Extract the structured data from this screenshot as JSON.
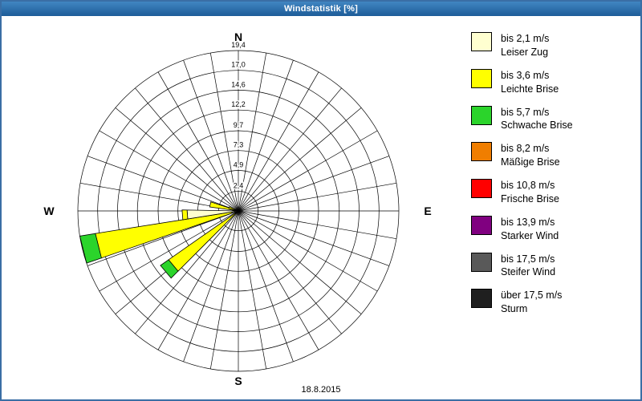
{
  "window": {
    "title": "Windstatistik [%]"
  },
  "footer": {
    "date": "18.8.2015"
  },
  "chart_data": {
    "type": "windrose",
    "unit": "%",
    "title": "Windstatistik [%]",
    "grid": true,
    "sectors": 36,
    "max_value": 19.4,
    "ring_values": [
      2.4,
      4.9,
      7.3,
      9.7,
      12.2,
      14.6,
      17.0,
      19.4
    ],
    "ring_labels": [
      "2,4",
      "4,9",
      "7,3",
      "9,7",
      "12,2",
      "14,6",
      "17,0",
      "19,4"
    ],
    "compass_labels": [
      "N",
      "E",
      "S",
      "W"
    ],
    "legend_position": "right",
    "speed_classes": [
      {
        "label_speed": "bis 2,1 m/s",
        "label_name": "Leiser Zug",
        "color": "#FFFFD0"
      },
      {
        "label_speed": "bis 3,6 m/s",
        "label_name": "Leichte Brise",
        "color": "#FFFF00"
      },
      {
        "label_speed": "bis 5,7 m/s",
        "label_name": "Schwache Brise",
        "color": "#2BD42B"
      },
      {
        "label_speed": "bis 8,2 m/s",
        "label_name": "Mäßige Brise",
        "color": "#F07E00"
      },
      {
        "label_speed": "bis 10,8 m/s",
        "label_name": "Frische Brise",
        "color": "#FF0000"
      },
      {
        "label_speed": "bis 13,9 m/s",
        "label_name": "Starker Wind",
        "color": "#800080"
      },
      {
        "label_speed": "bis 17,5 m/s",
        "label_name": "Steifer Wind",
        "color": "#595959"
      },
      {
        "label_speed": "über 17,5 m/s",
        "label_name": "Sturm",
        "color": "#1F1F1F"
      }
    ],
    "petals": [
      {
        "direction_deg": 256,
        "segments": [
          0.8,
          16.7,
          1.9,
          0,
          0,
          0,
          0,
          0
        ]
      },
      {
        "direction_deg": 230,
        "segments": [
          0.4,
          9.9,
          1.2,
          0,
          0,
          0,
          0,
          0
        ]
      },
      {
        "direction_deg": 266,
        "segments": [
          6.2,
          0.6,
          0,
          0,
          0,
          0,
          0,
          0
        ]
      },
      {
        "direction_deg": 283,
        "segments": [
          0.7,
          2.8,
          0,
          0,
          0,
          0,
          0,
          0
        ]
      },
      {
        "direction_deg": 290,
        "segments": [
          0.4,
          0.8,
          0,
          0,
          0,
          0,
          0,
          0
        ]
      }
    ]
  }
}
